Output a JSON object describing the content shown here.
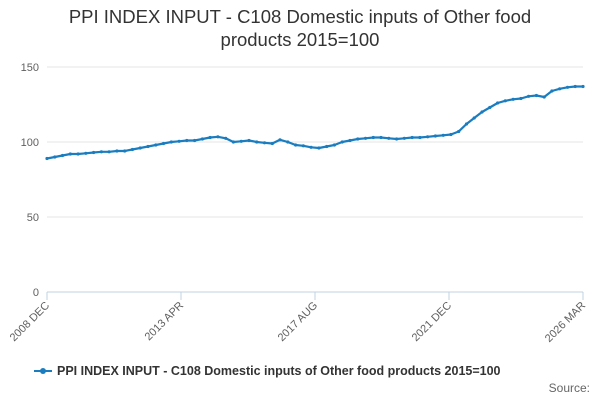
{
  "chart_data": {
    "type": "line",
    "title_lines": [
      "PPI INDEX INPUT - C108 Domestic inputs of Other food",
      "products 2015=100"
    ],
    "xlabel": "",
    "ylabel": "",
    "ylim": [
      0,
      150
    ],
    "yticks": [
      0,
      50,
      100,
      150
    ],
    "xtick_labels": [
      "2008 DEC",
      "2013 APR",
      "2017 AUG",
      "2021 DEC",
      "2026 MAR"
    ],
    "xlim": [
      "2008-12",
      "2026-03"
    ],
    "grid": "horizontal",
    "legend_position": "bottom",
    "colors": {
      "series": "#1a7dc0",
      "grid": "#e6e6e6",
      "axis": "#c0d0e0"
    },
    "series": [
      {
        "name": "PPI INDEX INPUT - C108 Domestic inputs of Other food products 2015=100",
        "points": [
          [
            "2008-12",
            89
          ],
          [
            "2009-03",
            90
          ],
          [
            "2009-06",
            91
          ],
          [
            "2009-09",
            92
          ],
          [
            "2009-12",
            92
          ],
          [
            "2010-03",
            92.5
          ],
          [
            "2010-06",
            93
          ],
          [
            "2010-09",
            93.5
          ],
          [
            "2010-12",
            93.5
          ],
          [
            "2011-03",
            94
          ],
          [
            "2011-06",
            94
          ],
          [
            "2011-09",
            95
          ],
          [
            "2011-12",
            96
          ],
          [
            "2012-03",
            97
          ],
          [
            "2012-06",
            98
          ],
          [
            "2012-09",
            99
          ],
          [
            "2012-12",
            100
          ],
          [
            "2013-03",
            100.5
          ],
          [
            "2013-06",
            101
          ],
          [
            "2013-09",
            101
          ],
          [
            "2013-12",
            102
          ],
          [
            "2014-03",
            103
          ],
          [
            "2014-06",
            103.5
          ],
          [
            "2014-09",
            102.5
          ],
          [
            "2014-12",
            100
          ],
          [
            "2015-03",
            100.5
          ],
          [
            "2015-06",
            101
          ],
          [
            "2015-09",
            100
          ],
          [
            "2015-12",
            99.5
          ],
          [
            "2016-03",
            99
          ],
          [
            "2016-06",
            101.5
          ],
          [
            "2016-09",
            100
          ],
          [
            "2016-12",
            98
          ],
          [
            "2017-03",
            97.5
          ],
          [
            "2017-06",
            96.5
          ],
          [
            "2017-09",
            96
          ],
          [
            "2017-12",
            97
          ],
          [
            "2018-03",
            98
          ],
          [
            "2018-06",
            100
          ],
          [
            "2018-09",
            101
          ],
          [
            "2018-12",
            102
          ],
          [
            "2019-03",
            102.5
          ],
          [
            "2019-06",
            103
          ],
          [
            "2019-09",
            103
          ],
          [
            "2019-12",
            102.5
          ],
          [
            "2020-03",
            102
          ],
          [
            "2020-06",
            102.5
          ],
          [
            "2020-09",
            103
          ],
          [
            "2020-12",
            103
          ],
          [
            "2021-03",
            103.5
          ],
          [
            "2021-06",
            104
          ],
          [
            "2021-09",
            104.5
          ],
          [
            "2021-12",
            105
          ],
          [
            "2022-03",
            107
          ],
          [
            "2022-06",
            112
          ],
          [
            "2022-09",
            116
          ],
          [
            "2022-12",
            120
          ],
          [
            "2023-03",
            123
          ],
          [
            "2023-06",
            126
          ],
          [
            "2023-09",
            127.5
          ],
          [
            "2023-12",
            128.5
          ],
          [
            "2024-03",
            129
          ],
          [
            "2024-06",
            130.5
          ],
          [
            "2024-09",
            131
          ],
          [
            "2024-12",
            130
          ],
          [
            "2025-03",
            134
          ],
          [
            "2025-06",
            135.5
          ],
          [
            "2025-09",
            136.5
          ],
          [
            "2025-12",
            137
          ],
          [
            "2026-03",
            137
          ]
        ]
      }
    ]
  },
  "source_label": "Source:"
}
